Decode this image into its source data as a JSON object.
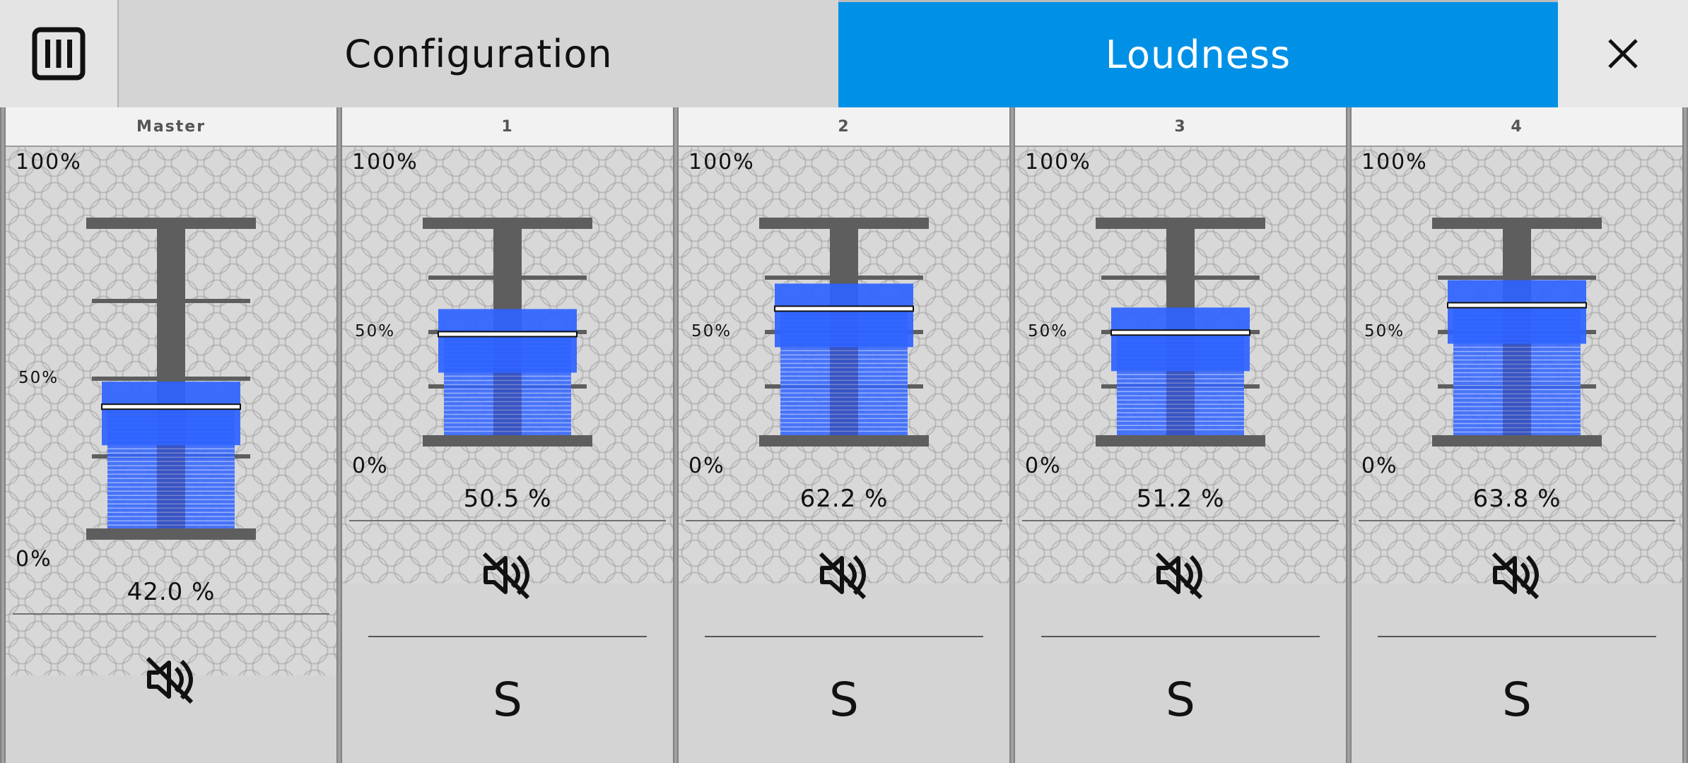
{
  "header": {
    "menu_icon": "columns-menu-icon",
    "tabs": [
      {
        "label": "Configuration",
        "active": false
      },
      {
        "label": "Loudness",
        "active": true
      }
    ],
    "close_icon": "close-x-icon",
    "accent_color": "#0091e6"
  },
  "scale_labels": {
    "top": "100%",
    "mid": "50%",
    "bottom": "0%"
  },
  "fader_fill_color": "#2f63ff",
  "strips": [
    {
      "name": "Master",
      "level": 0.42,
      "value_text": "42.0 %",
      "mute_icon": "speaker-muted-icon",
      "solo_label": ""
    },
    {
      "name": "1",
      "level": 0.505,
      "value_text": "50.5 %",
      "mute_icon": "speaker-muted-icon",
      "solo_label": "S"
    },
    {
      "name": "2",
      "level": 0.622,
      "value_text": "62.2 %",
      "mute_icon": "speaker-muted-icon",
      "solo_label": "S"
    },
    {
      "name": "3",
      "level": 0.512,
      "value_text": "51.2 %",
      "mute_icon": "speaker-muted-icon",
      "solo_label": "S"
    },
    {
      "name": "4",
      "level": 0.638,
      "value_text": "63.8 %",
      "mute_icon": "speaker-muted-icon",
      "solo_label": "S"
    }
  ]
}
